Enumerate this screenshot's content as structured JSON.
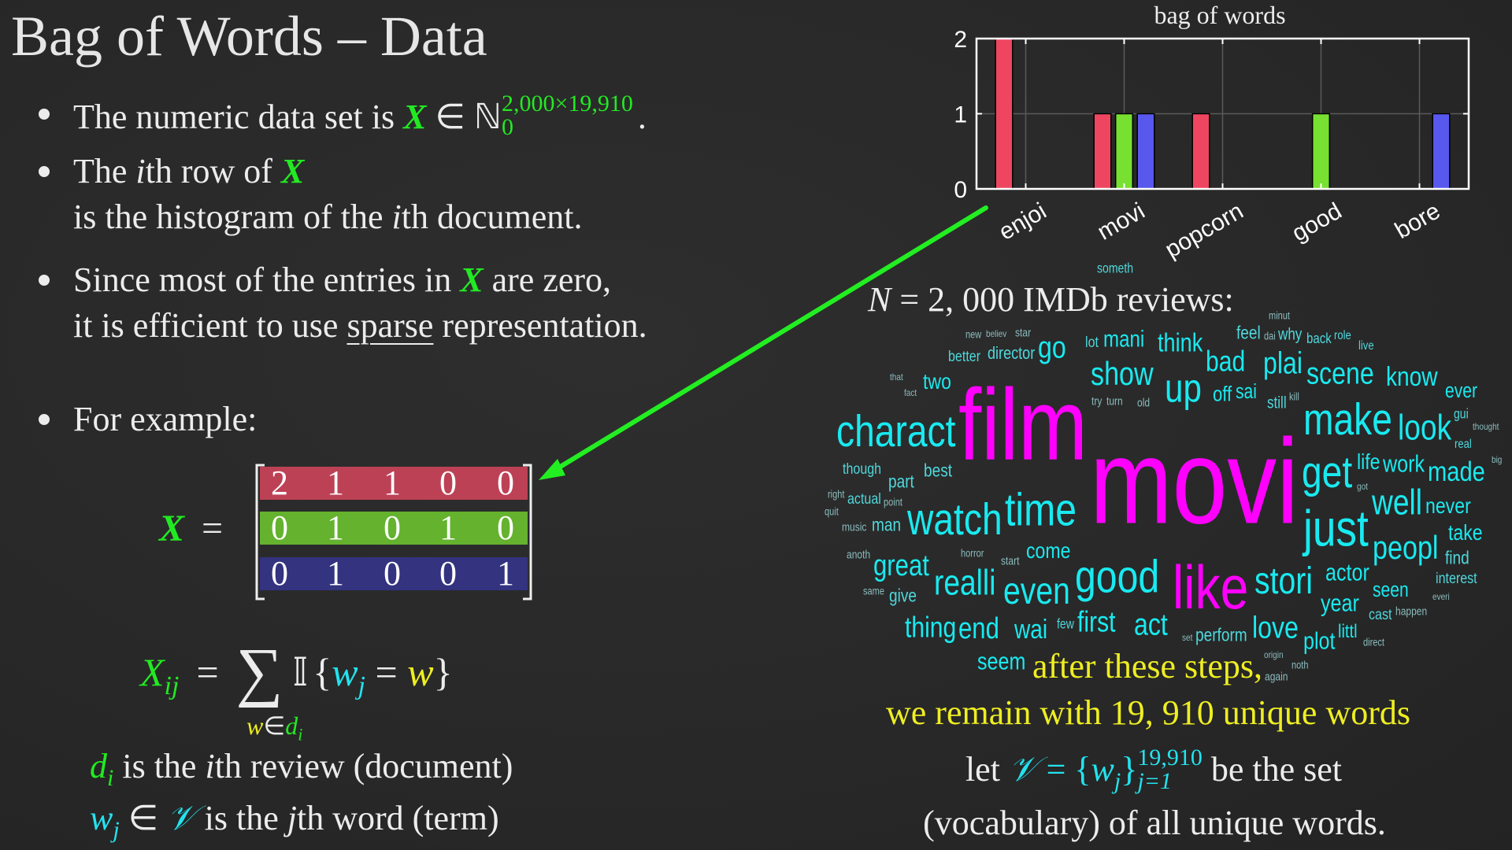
{
  "slide": {
    "title": "Bag of Words – Data",
    "bullets": {
      "b1": {
        "pre": "The numeric data set is ",
        "X": "X",
        "in": " ∈ ℕ",
        "sup": "2,000×19,910",
        "sub": "0",
        "post": "."
      },
      "b2": {
        "l1_pre": "The ",
        "i": "i",
        "l1_mid": "th row of ",
        "X": "X",
        "l2_pre": "is the histogram of the ",
        "l2_i": "i",
        "l2_post": "th document."
      },
      "b3": {
        "l1_pre": "Since most of the entries in ",
        "X": "X",
        "l1_post": " are zero,",
        "l2_pre": "it is efficient to use ",
        "sparse": "sparse",
        "l2_post": " representation."
      },
      "b4": {
        "text": "For example:"
      }
    },
    "matrix": {
      "lhs": "X",
      "eq": "=",
      "rows": [
        [
          2,
          1,
          1,
          0,
          0
        ],
        [
          0,
          1,
          0,
          1,
          0
        ],
        [
          0,
          1,
          0,
          0,
          1
        ]
      ],
      "row_colors": [
        "#bd4155",
        "#64b22e",
        "#333380"
      ]
    },
    "formula": {
      "X": "X",
      "ij": "ij",
      "eq": "=",
      "sum": "∑",
      "indicator": "𝕀",
      "lbrace": "{",
      "w": "w",
      "j": "j",
      "eq2": " = ",
      "w2": "w",
      "rbrace": "}",
      "under_w": "w",
      "under_in": "∈",
      "under_d": "d",
      "under_i": "i"
    },
    "defs": {
      "d": {
        "sym": "d",
        "sub": "i",
        "pre": " is the ",
        "i": "i",
        "post": "th review (document)"
      },
      "w": {
        "sym": "w",
        "sub": "j",
        "in": " ∈ ",
        "V": "𝒱",
        "pre": " is the ",
        "j": "j",
        "post": "th word (term)"
      }
    },
    "right": {
      "n_line": {
        "N": "N",
        "rest": " = 2, 000 IMDb reviews:"
      },
      "after1": "after these steps,",
      "after2": "we remain with 19, 910 unique words",
      "let": {
        "pre": "let ",
        "V": "𝒱",
        "eq": " = {",
        "w": "w",
        "j": "j",
        "close": "}",
        "sup": "19,910",
        "sub": "j=1",
        "post": " be the set"
      },
      "vocab": "(vocabulary) of all unique words."
    },
    "colors": {
      "green": "#22ea22",
      "cyan": "#22e3ef",
      "yellow": "#eeee22",
      "magenta": "#ff00ff",
      "arrow": "#22ee22"
    }
  },
  "chart_data": {
    "type": "bar",
    "title": "bag of words",
    "categories": [
      "enjoi",
      "movi",
      "popcorn",
      "good",
      "bore"
    ],
    "series": [
      {
        "values": [
          2,
          1,
          1,
          0,
          0
        ],
        "color": "#ee4661"
      },
      {
        "values": [
          0,
          1,
          0,
          1,
          0
        ],
        "color": "#77e030"
      },
      {
        "values": [
          0,
          1,
          0,
          0,
          1
        ],
        "color": "#5858ee"
      }
    ],
    "yticks": [
      0,
      1,
      2
    ],
    "ylim": [
      0,
      2
    ],
    "grid": true
  },
  "wordcloud": {
    "highlighted": [
      "film",
      "movi",
      "like"
    ],
    "palette": {
      "large": "#19eaf0",
      "medium": "#4fd8dc",
      "small": "#8cbcbe",
      "highlight": "#ff00ff"
    },
    "words": [
      "someth",
      "new",
      "star",
      "mani",
      "think",
      "feel",
      "why",
      "role",
      "better",
      "believ",
      "director",
      "show",
      "off",
      "bad",
      "plai",
      "two",
      "go",
      "up",
      "minut",
      "sai",
      "scene",
      "live",
      "know",
      "ever",
      "try",
      "fact",
      "back",
      "dai",
      "charact",
      "film",
      "make",
      "look",
      "gui",
      "thought",
      "lot",
      "that",
      "old",
      "still",
      "work",
      "big",
      "life",
      "though",
      "best",
      "right",
      "watch",
      "part",
      "get",
      "made",
      "real",
      "music",
      "point",
      "actual",
      "turn",
      "kill",
      "quit",
      "movi",
      "got",
      "time",
      "find",
      "well",
      "never",
      "take",
      "horror",
      "littl",
      "everi",
      "just",
      "interest",
      "great",
      "come",
      "realli",
      "like",
      "same",
      "peopl",
      "anoth",
      "man",
      "end",
      "good",
      "seen",
      "give",
      "first",
      "set",
      "noth",
      "stori",
      "actor",
      "few",
      "wai",
      "even",
      "direct",
      "year",
      "cast",
      "thing",
      "happen",
      "start",
      "seem",
      "act",
      "love",
      "plot",
      "origin",
      "again",
      "perform"
    ]
  }
}
